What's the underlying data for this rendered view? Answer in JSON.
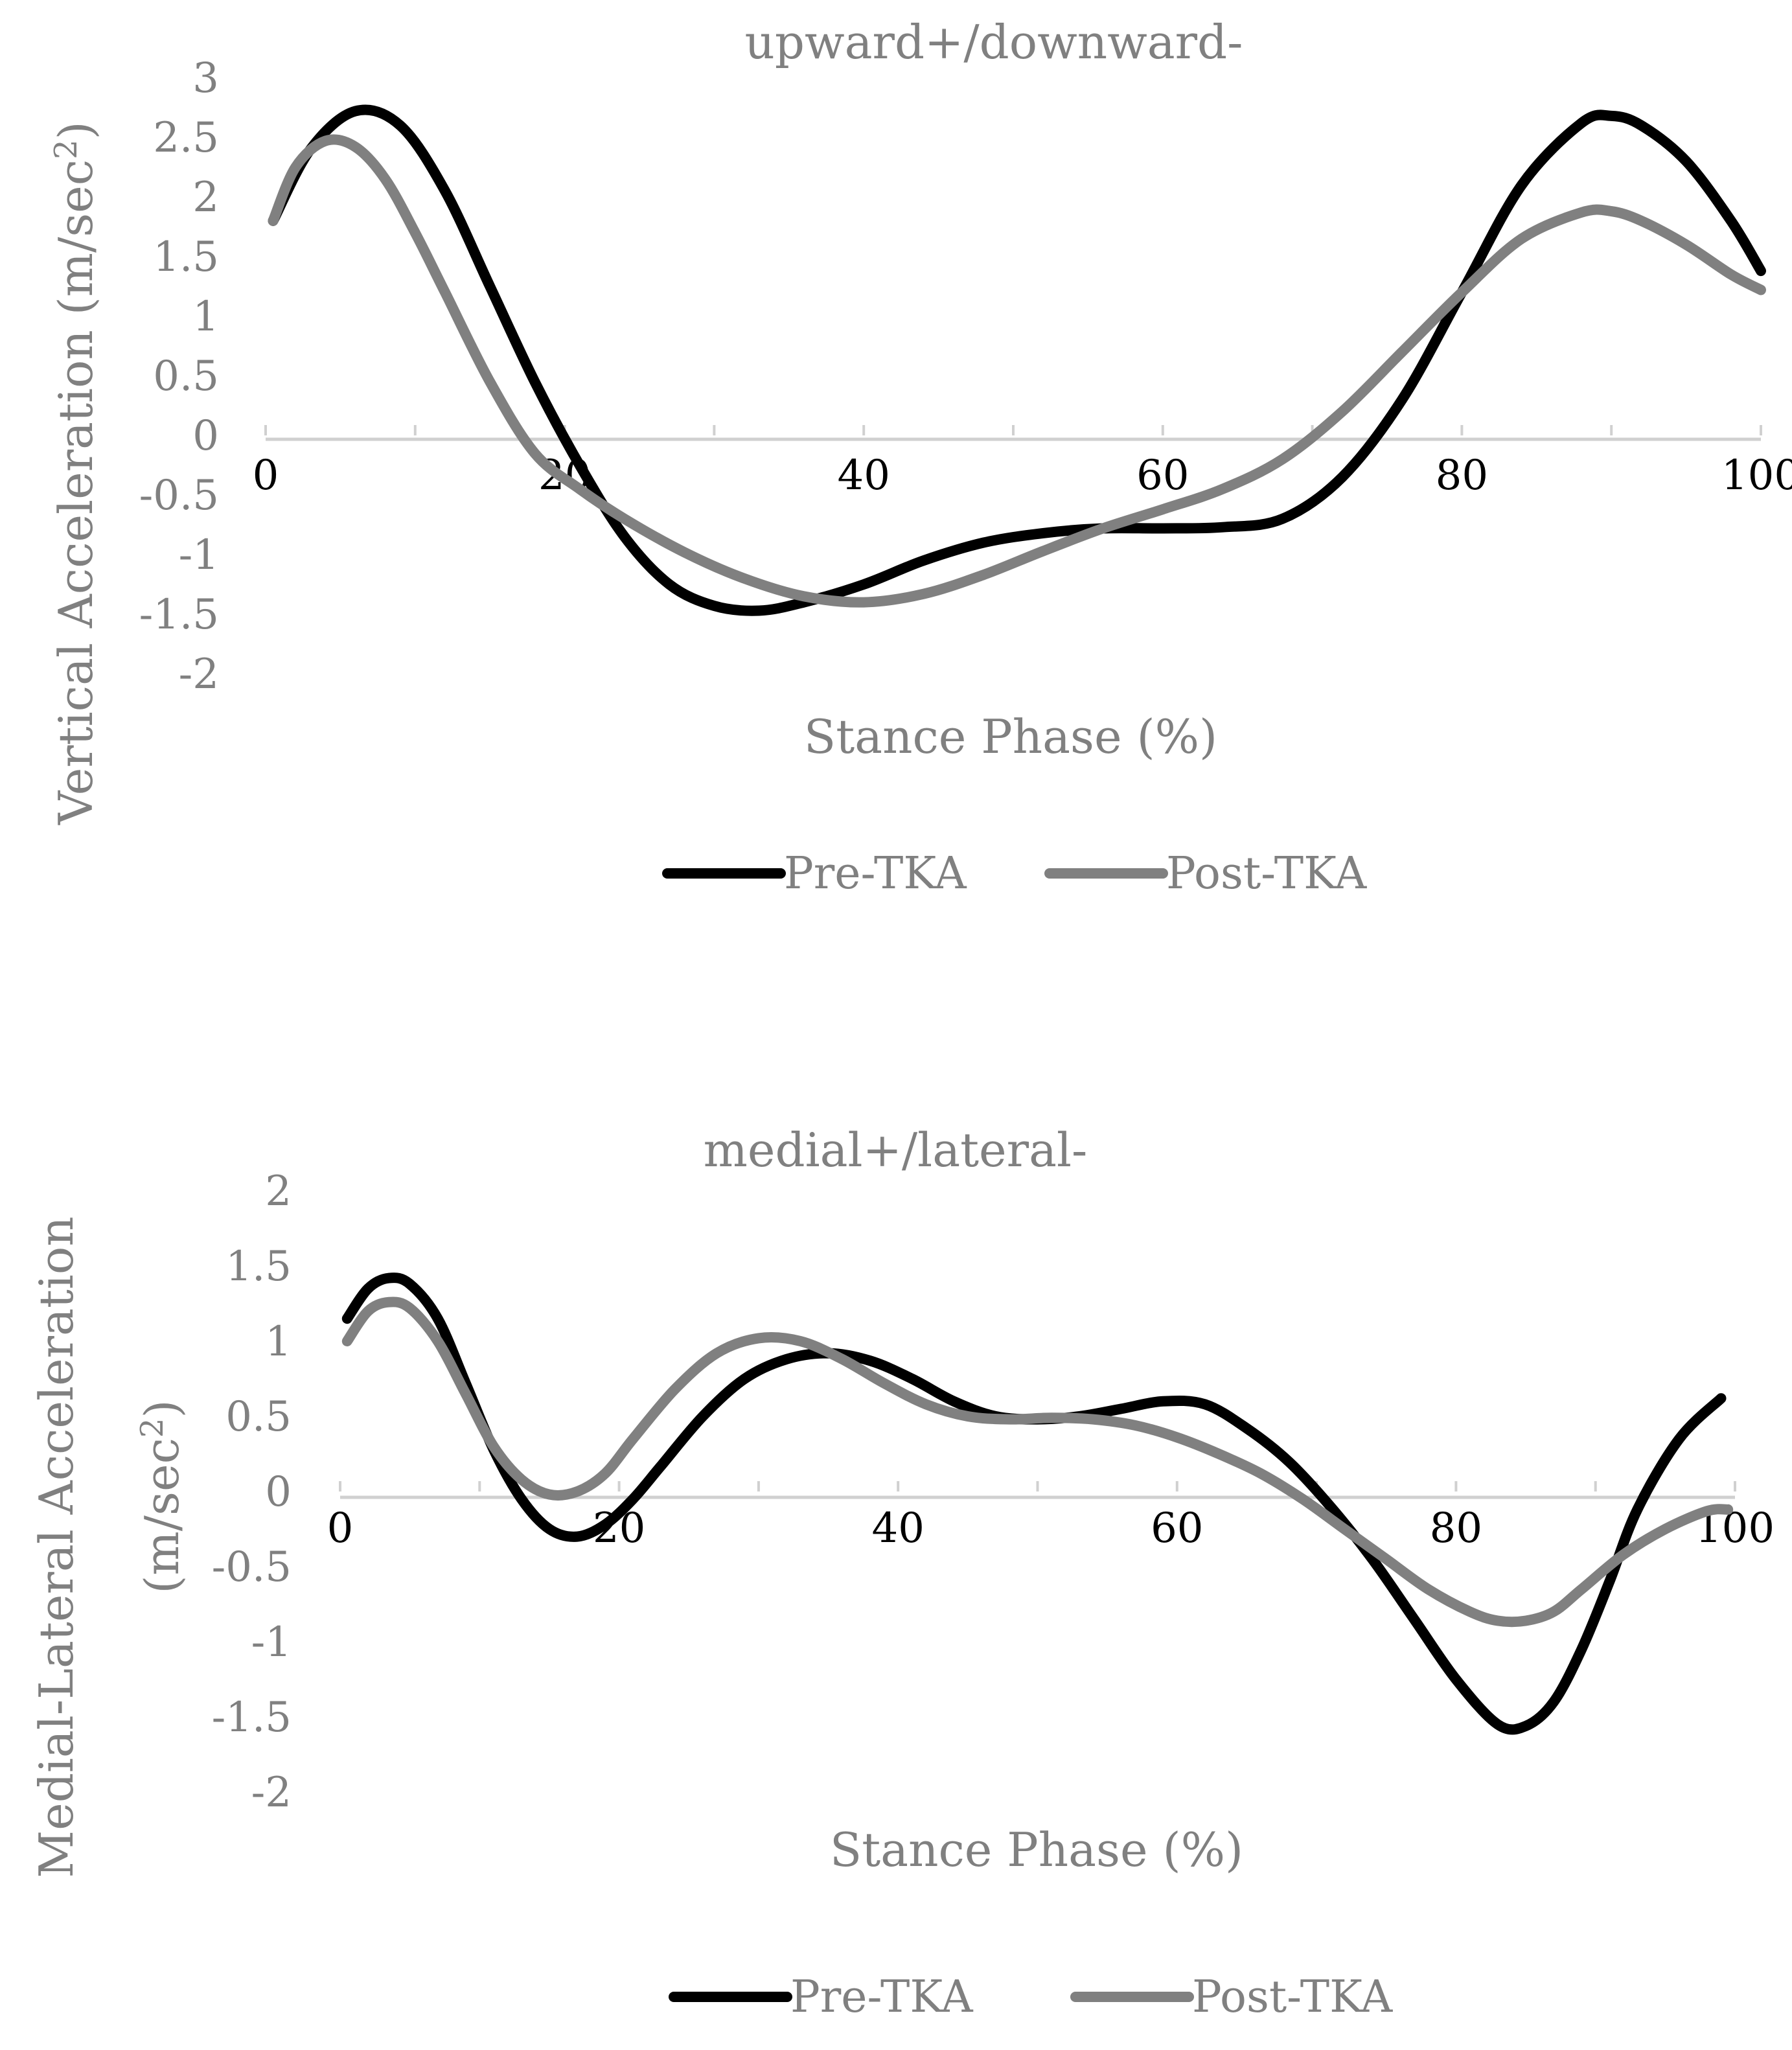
{
  "chart_data": [
    {
      "type": "line",
      "title": "upward+/downward-",
      "xlabel": "Stance Phase (%)",
      "ylabel": "Vertical Acceleration (m/sec²)",
      "ylabel_lines": [
        "Vertical Acceleration (m/sec",
        "2",
        ")"
      ],
      "xlim": [
        0,
        100
      ],
      "ylim": [
        -2,
        3
      ],
      "x_ticks": [
        "0",
        "20",
        "40",
        "60",
        "80",
        "100"
      ],
      "y_ticks": [
        "3",
        "2.5",
        "2",
        "1.5",
        "1",
        "0.5",
        "0",
        "-0.5",
        "-1",
        "-1.5",
        "-2"
      ],
      "series": [
        {
          "name": "Pre-TKA",
          "color": "#000000",
          "x": [
            0.5,
            3,
            6,
            9,
            12,
            15,
            18,
            21,
            24,
            27,
            30,
            33,
            36,
            40,
            44,
            48,
            52,
            56,
            60,
            64,
            68,
            72,
            76,
            80,
            84,
            88,
            90,
            92,
            95,
            98,
            100
          ],
          "y": [
            1.8,
            2.4,
            2.72,
            2.6,
            2.05,
            1.25,
            0.45,
            -0.25,
            -0.85,
            -1.25,
            -1.43,
            -1.47,
            -1.4,
            -1.25,
            -1.05,
            -0.9,
            -0.82,
            -0.78,
            -0.78,
            -0.77,
            -0.7,
            -0.35,
            0.3,
            1.2,
            2.1,
            2.62,
            2.68,
            2.6,
            2.3,
            1.8,
            1.38
          ]
        },
        {
          "name": "Post-TKA",
          "color": "#808080",
          "x": [
            0.5,
            2,
            4,
            6,
            8,
            10,
            12,
            15,
            18,
            21,
            24,
            28,
            32,
            36,
            40,
            44,
            48,
            52,
            56,
            60,
            64,
            68,
            72,
            76,
            80,
            84,
            88,
            90,
            92,
            95,
            98,
            100
          ],
          "y": [
            1.8,
            2.25,
            2.47,
            2.42,
            2.15,
            1.7,
            1.2,
            0.45,
            -0.15,
            -0.45,
            -0.7,
            -0.98,
            -1.2,
            -1.35,
            -1.4,
            -1.33,
            -1.17,
            -0.97,
            -0.78,
            -0.62,
            -0.45,
            -0.2,
            0.2,
            0.7,
            1.2,
            1.65,
            1.87,
            1.88,
            1.8,
            1.6,
            1.35,
            1.22
          ]
        }
      ],
      "legend": [
        "Pre-TKA",
        "Post-TKA"
      ],
      "legend_position": "bottom",
      "grid": false
    },
    {
      "type": "line",
      "title": "medial+/lateral-",
      "xlabel": "Stance Phase (%)",
      "ylabel": "Medial-Lateral Acceleration (m/sec²)",
      "ylabel_lines": [
        "Medial-Lateral Acceleration",
        "(m/sec",
        "2",
        ")"
      ],
      "xlim": [
        0,
        100
      ],
      "ylim": [
        -2,
        2
      ],
      "x_ticks": [
        "0",
        "20",
        "40",
        "60",
        "80",
        "100"
      ],
      "y_ticks": [
        "2",
        "1.5",
        "1",
        "0.5",
        "0",
        "-0.5",
        "-1",
        "-1.5",
        "-2"
      ],
      "series": [
        {
          "name": "Pre-TKA",
          "color": "#000000",
          "x": [
            0.5,
            2,
            3.5,
            5,
            7,
            9,
            11,
            13,
            15,
            17,
            19,
            21,
            23,
            26,
            29,
            32,
            35,
            38,
            41,
            44,
            47,
            50,
            53,
            56,
            59,
            62,
            65,
            68,
            71,
            74,
            77,
            80,
            83,
            85,
            87,
            89,
            91,
            93,
            96,
            99
          ],
          "y": [
            1.15,
            1.35,
            1.42,
            1.38,
            1.15,
            0.72,
            0.28,
            -0.05,
            -0.25,
            -0.3,
            -0.22,
            -0.05,
            0.17,
            0.5,
            0.75,
            0.88,
            0.92,
            0.87,
            0.75,
            0.6,
            0.5,
            0.48,
            0.5,
            0.55,
            0.6,
            0.58,
            0.42,
            0.2,
            -0.1,
            -0.45,
            -0.85,
            -1.25,
            -1.55,
            -1.56,
            -1.4,
            -1.05,
            -0.6,
            -0.12,
            0.35,
            0.62
          ]
        },
        {
          "name": "Post-TKA",
          "color": "#808080",
          "x": [
            0.5,
            2,
            3.5,
            5,
            7,
            9,
            11,
            13,
            15,
            17,
            19,
            21,
            24,
            27,
            30,
            33,
            36,
            39,
            42,
            45,
            48,
            51,
            54,
            57,
            60,
            63,
            66,
            69,
            72,
            75,
            78,
            81,
            83,
            85,
            87,
            89,
            92,
            95,
            98,
            99.5
          ],
          "y": [
            1.0,
            1.2,
            1.26,
            1.22,
            1.0,
            0.65,
            0.3,
            0.08,
            -0.02,
            0.0,
            0.12,
            0.35,
            0.68,
            0.92,
            1.02,
            1.0,
            0.88,
            0.72,
            0.58,
            0.5,
            0.48,
            0.49,
            0.48,
            0.44,
            0.36,
            0.25,
            0.12,
            -0.05,
            -0.25,
            -0.45,
            -0.65,
            -0.8,
            -0.86,
            -0.86,
            -0.8,
            -0.65,
            -0.42,
            -0.25,
            -0.13,
            -0.12
          ]
        }
      ],
      "legend": [
        "Pre-TKA",
        "Post-TKA"
      ],
      "legend_position": "bottom",
      "grid": false
    }
  ]
}
